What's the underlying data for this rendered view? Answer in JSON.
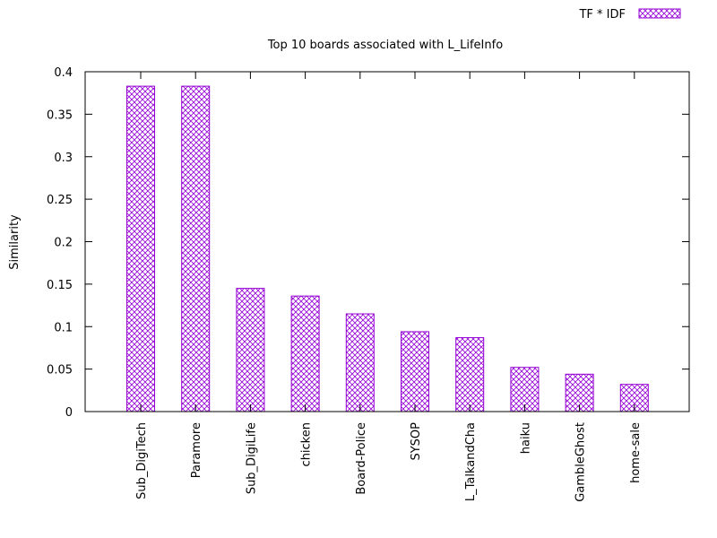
{
  "chart_data": {
    "type": "bar",
    "title": "Top 10 boards associated with L_LifeInfo",
    "xlabel": "",
    "ylabel": "Similarity",
    "ylim": [
      0,
      0.4
    ],
    "yticks": [
      "0",
      "0.05",
      "0.1",
      "0.15",
      "0.2",
      "0.25",
      "0.3",
      "0.35",
      "0.4"
    ],
    "ytick_values": [
      0,
      0.05,
      0.1,
      0.15,
      0.2,
      0.25,
      0.3,
      0.35,
      0.4
    ],
    "categories": [
      "Sub_DigiTech",
      "Paramore",
      "Sub_DigiLife",
      "chicken",
      "Board-Police",
      "SYSOP",
      "L_TalkandCha",
      "haiku",
      "GambleGhost",
      "home-sale"
    ],
    "series": [
      {
        "name": "TF * IDF",
        "color": "#9400d3",
        "pattern": "crosshatch",
        "values": [
          0.383,
          0.383,
          0.145,
          0.136,
          0.115,
          0.094,
          0.087,
          0.052,
          0.044,
          0.032
        ]
      }
    ],
    "grid": false,
    "legend_position": "top-right"
  }
}
